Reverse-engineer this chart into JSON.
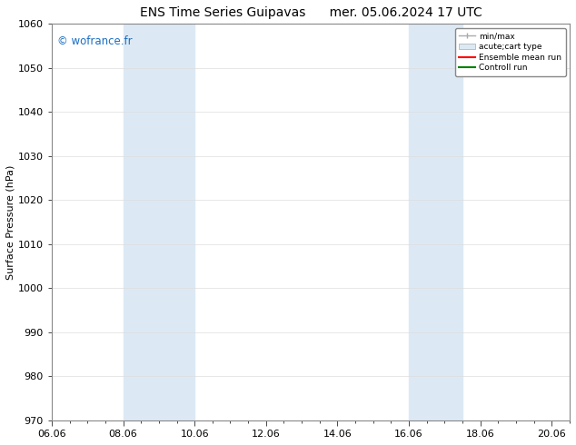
{
  "title_left": "ENS Time Series Guipavas",
  "title_right": "mer. 05.06.2024 17 UTC",
  "ylabel": "Surface Pressure (hPa)",
  "ylim": [
    970,
    1060
  ],
  "yticks": [
    970,
    980,
    990,
    1000,
    1010,
    1020,
    1030,
    1040,
    1050,
    1060
  ],
  "xlim": [
    0,
    14.5
  ],
  "xtick_labels": [
    "06.06",
    "08.06",
    "10.06",
    "12.06",
    "14.06",
    "16.06",
    "18.06",
    "20.06"
  ],
  "xtick_positions": [
    0,
    2,
    4,
    6,
    8,
    10,
    12,
    14
  ],
  "shaded_bands": [
    {
      "x_start": 2,
      "x_end": 4
    },
    {
      "x_start": 10,
      "x_end": 11.5
    }
  ],
  "shaded_color": "#dce9f5",
  "watermark": "© wofrance.fr",
  "watermark_color": "#1a6fc4",
  "background_color": "#ffffff",
  "legend_items": [
    {
      "label": "min/max"
    },
    {
      "label": "acute;cart type"
    },
    {
      "label": "Ensemble mean run"
    },
    {
      "label": "Controll run"
    }
  ],
  "legend_colors": [
    "#aaaaaa",
    "#c8d8e8",
    "#ff0000",
    "#008000"
  ],
  "grid_color": "#dddddd",
  "title_fontsize": 10,
  "label_fontsize": 8,
  "tick_fontsize": 8
}
